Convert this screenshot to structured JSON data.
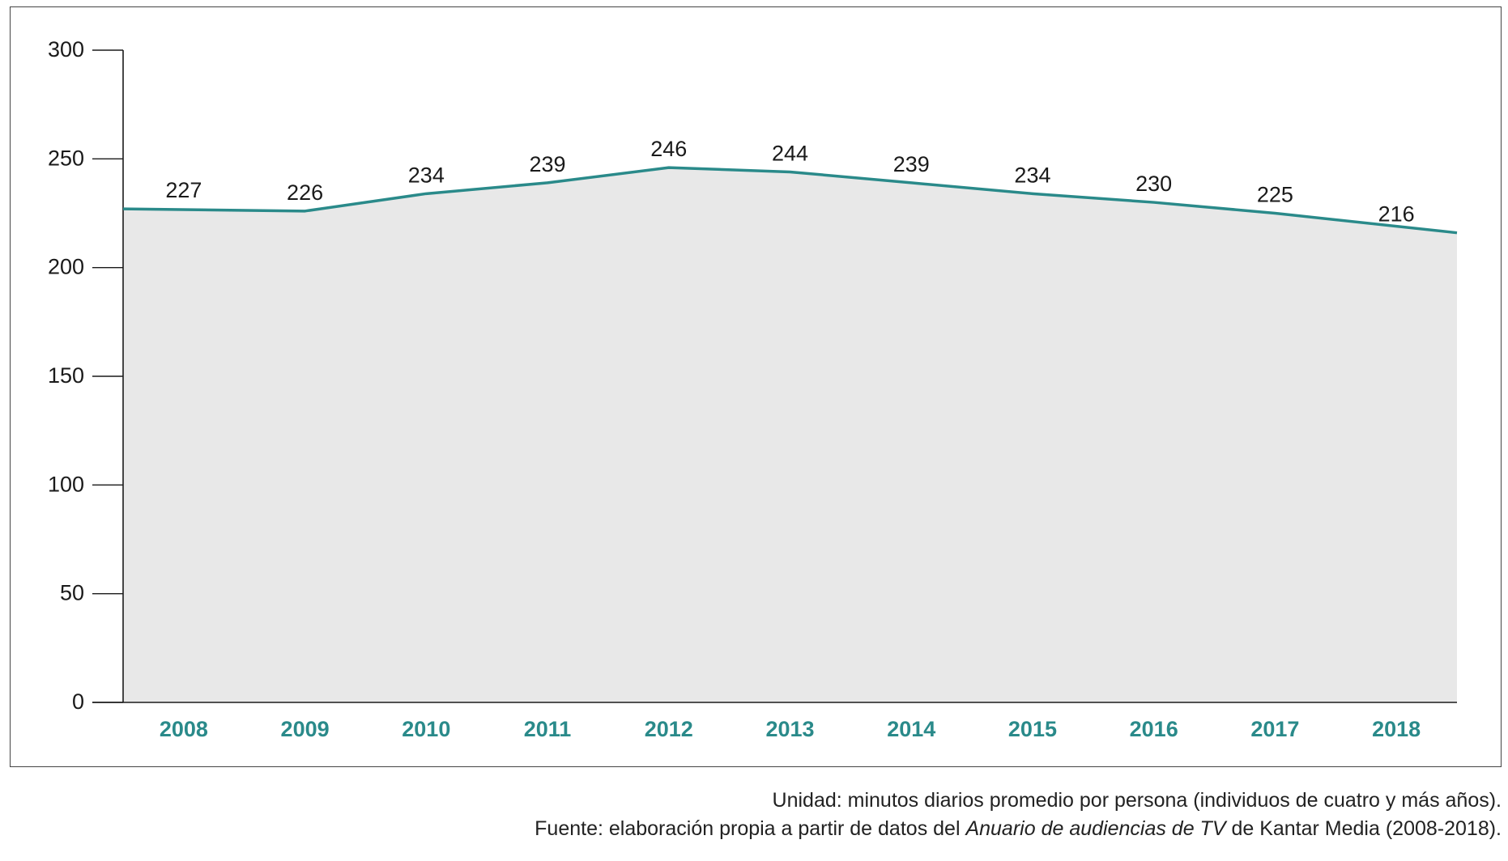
{
  "chart_data": {
    "type": "area",
    "categories": [
      "2008",
      "2009",
      "2010",
      "2011",
      "2012",
      "2013",
      "2014",
      "2015",
      "2016",
      "2017",
      "2018"
    ],
    "values": [
      227,
      226,
      234,
      239,
      246,
      244,
      239,
      234,
      230,
      225,
      216
    ],
    "data_labels": [
      "227",
      "226",
      "234",
      "239",
      "246",
      "244",
      "239",
      "234",
      "230",
      "225",
      "216"
    ],
    "y_ticks": [
      "0",
      "50",
      "100",
      "150",
      "200",
      "250",
      "300"
    ],
    "ylim": [
      0,
      300
    ],
    "grid": false,
    "colors": {
      "line": "#2a8a8a",
      "fill": "#e8e8e8",
      "x_tick_text": "#2a8a8a"
    }
  },
  "caption": {
    "unit": "Unidad: minutos diarios promedio por persona (individuos de cuatro y más años).",
    "source_prefix": "Fuente: elaboración propia a partir de datos del ",
    "source_italic": "Anuario de audiencias de TV",
    "source_suffix": " de Kantar Media (2008-2018)."
  }
}
